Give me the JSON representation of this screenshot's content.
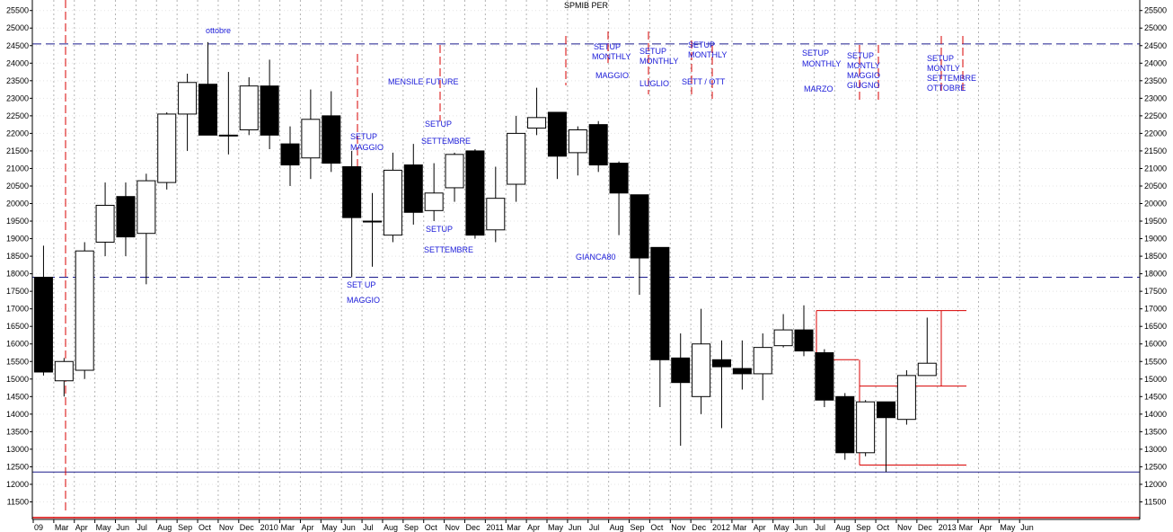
{
  "chart_data": {
    "type": "candlestick",
    "title": "SPMIB PER",
    "ylim": [
      11000,
      25800
    ],
    "y_ticks": [
      11500,
      12000,
      12500,
      13000,
      13500,
      14000,
      14500,
      15000,
      15500,
      16000,
      16500,
      17000,
      17500,
      18000,
      18500,
      19000,
      19500,
      20000,
      20500,
      21000,
      21500,
      22000,
      22500,
      23000,
      23500,
      24000,
      24500,
      25000,
      25500
    ],
    "x_labels": [
      "09",
      "Mar",
      "Apr",
      "May",
      "Jun",
      "Jul",
      "Aug",
      "Sep",
      "Oct",
      "Nov",
      "Dec",
      "2010",
      "Mar",
      "Apr",
      "May",
      "Jun",
      "Jul",
      "Aug",
      "Sep",
      "Oct",
      "Nov",
      "Dec",
      "2011",
      "Mar",
      "Apr",
      "May",
      "Jun",
      "Jul",
      "Aug",
      "Sep",
      "Oct",
      "Nov",
      "Dec",
      "2012",
      "Mar",
      "Apr",
      "May",
      "Jun",
      "Jul",
      "Aug",
      "Sep",
      "Oct",
      "Nov",
      "Dec",
      "2013",
      "Mar",
      "Apr",
      "May",
      "Jun"
    ],
    "candles": [
      {
        "o": 17900,
        "h": 18800,
        "l": 15100,
        "c": 15200
      },
      {
        "o": 14950,
        "h": 15600,
        "l": 14500,
        "c": 15500
      },
      {
        "o": 15250,
        "h": 18900,
        "l": 15000,
        "c": 18650
      },
      {
        "o": 18900,
        "h": 20600,
        "l": 18500,
        "c": 19950
      },
      {
        "o": 20200,
        "h": 20600,
        "l": 18500,
        "c": 19050
      },
      {
        "o": 19150,
        "h": 20850,
        "l": 17700,
        "c": 20650
      },
      {
        "o": 20600,
        "h": 22600,
        "l": 20400,
        "c": 22550
      },
      {
        "o": 22550,
        "h": 23700,
        "l": 21500,
        "c": 23450
      },
      {
        "o": 23400,
        "h": 24600,
        "l": 21950,
        "c": 21950
      },
      {
        "o": 21950,
        "h": 23750,
        "l": 21400,
        "c": 21950
      },
      {
        "o": 22100,
        "h": 23600,
        "l": 21950,
        "c": 23350
      },
      {
        "o": 23350,
        "h": 24100,
        "l": 21550,
        "c": 21950
      },
      {
        "o": 21700,
        "h": 22200,
        "l": 20500,
        "c": 21100
      },
      {
        "o": 21300,
        "h": 23250,
        "l": 20700,
        "c": 22400
      },
      {
        "o": 22500,
        "h": 23200,
        "l": 20900,
        "c": 21150
      },
      {
        "o": 21050,
        "h": 21500,
        "l": 17900,
        "c": 19600
      },
      {
        "o": 19500,
        "h": 20300,
        "l": 18200,
        "c": 19500
      },
      {
        "o": 19100,
        "h": 21450,
        "l": 18900,
        "c": 20950
      },
      {
        "o": 21100,
        "h": 21700,
        "l": 19400,
        "c": 19750
      },
      {
        "o": 19800,
        "h": 21150,
        "l": 19500,
        "c": 20300
      },
      {
        "o": 20450,
        "h": 21450,
        "l": 20050,
        "c": 21400
      },
      {
        "o": 21500,
        "h": 21550,
        "l": 19000,
        "c": 19100
      },
      {
        "o": 19250,
        "h": 21050,
        "l": 18900,
        "c": 20150
      },
      {
        "o": 20550,
        "h": 22500,
        "l": 20050,
        "c": 22000
      },
      {
        "o": 22150,
        "h": 23300,
        "l": 21950,
        "c": 22450
      },
      {
        "o": 22600,
        "h": 22600,
        "l": 20700,
        "c": 21350
      },
      {
        "o": 21450,
        "h": 22200,
        "l": 20800,
        "c": 22100
      },
      {
        "o": 22250,
        "h": 22350,
        "l": 20900,
        "c": 21100
      },
      {
        "o": 21150,
        "h": 21200,
        "l": 19100,
        "c": 20300
      },
      {
        "o": 20250,
        "h": 20250,
        "l": 17400,
        "c": 18450
      },
      {
        "o": 18750,
        "h": 18750,
        "l": 14200,
        "c": 15550
      },
      {
        "o": 15600,
        "h": 16300,
        "l": 13100,
        "c": 14900
      },
      {
        "o": 14500,
        "h": 17000,
        "l": 14000,
        "c": 16000
      },
      {
        "o": 15550,
        "h": 16100,
        "l": 13600,
        "c": 15350
      },
      {
        "o": 15300,
        "h": 16100,
        "l": 14700,
        "c": 15150
      },
      {
        "o": 15150,
        "h": 16300,
        "l": 14400,
        "c": 15900
      },
      {
        "o": 15950,
        "h": 16850,
        "l": 15900,
        "c": 16400
      },
      {
        "o": 16400,
        "h": 17100,
        "l": 15650,
        "c": 15800
      },
      {
        "o": 15750,
        "h": 15850,
        "l": 14200,
        "c": 14400
      },
      {
        "o": 14500,
        "h": 14600,
        "l": 12700,
        "c": 12900
      },
      {
        "o": 12900,
        "h": 14400,
        "l": 12800,
        "c": 14350
      },
      {
        "o": 14350,
        "h": 14350,
        "l": 12350,
        "c": 13900
      },
      {
        "o": 13850,
        "h": 15250,
        "l": 13700,
        "c": 15100
      },
      {
        "o": 15100,
        "h": 16750,
        "l": 15100,
        "c": 15450
      }
    ],
    "annotations": {
      "title": "SPMIB PER",
      "a1": "ottobre",
      "a2": "SETUP",
      "a3": "MAGGIO",
      "a4": "SET UP",
      "a5": "MAGGIO",
      "a6": "MENSILE FUTURE",
      "a7": "SETUP",
      "a8": "SETTEMBRE",
      "a9": "SETUP",
      "a10": "SETTEMBRE",
      "a11": "GIANCA80",
      "a12": "SETUP",
      "a13": "MONTHLY",
      "a14": "MAGGIO",
      "a15": "SETUP",
      "a16": "MONTHLY",
      "a17": "LUGLIO",
      "a18": "SETUP",
      "a19": "MONTHLY",
      "a20": "SETT / OTT",
      "a21": "SETUP",
      "a22": "MONTHLY",
      "a23": "MARZO",
      "a24": "SETUP",
      "a25": "MONTLY",
      "a26": "MAGGIO",
      "a27": "GIUGNO",
      "a28": "SETUP",
      "a29": "MONTLY",
      "a30": "SETTEMBRE",
      "a31": "OTTOBRE"
    },
    "reference_lines": {
      "dashed_blue": [
        24550,
        17900
      ],
      "solid_blue": [
        12350
      ],
      "solid_red_bottom": [
        11050
      ]
    },
    "colors": {
      "bear_fill": "#000000",
      "bull_fill": "#ffffff",
      "annotation": "#1a1ad8",
      "red": "#d80000",
      "blue_line": "#1a1a8c",
      "grid": "#b4b4b4"
    },
    "grid": true
  }
}
